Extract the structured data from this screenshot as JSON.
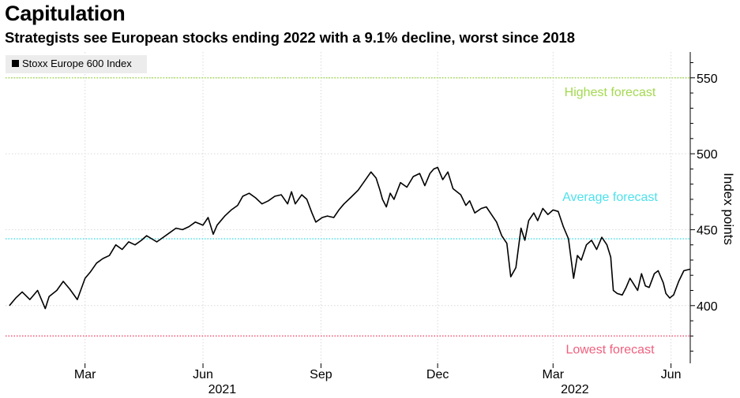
{
  "header": {
    "title": "Capitulation",
    "subtitle": "Strategists see European stocks ending 2022 with a 9.1% decline, worst since 2018"
  },
  "chart_data": {
    "type": "line",
    "title": "Capitulation",
    "subtitle": "Strategists see European stocks ending 2022 with a 9.1% decline, worst since 2018",
    "ylabel": "Index points",
    "ylim": [
      362,
      567
    ],
    "yticks": [
      400,
      450,
      500,
      550
    ],
    "x_range_days": [
      -3,
      531
    ],
    "x_ticks": [
      {
        "label": "Mar",
        "day": 59
      },
      {
        "label": "Jun",
        "day": 151
      },
      {
        "label": "Sep",
        "day": 243
      },
      {
        "label": "Dec",
        "day": 334
      },
      {
        "label": "Mar",
        "day": 424
      },
      {
        "label": "Jun",
        "day": 516
      }
    ],
    "year_labels": [
      {
        "label": "2021",
        "day": 166
      },
      {
        "label": "2022",
        "day": 441
      }
    ],
    "grid": true,
    "legend": [
      {
        "name": "Stoxx Europe 600 Index",
        "color": "#000000"
      }
    ],
    "legend_position": "top-left",
    "reference_lines": [
      {
        "name": "Highest forecast",
        "value": 550,
        "color": "#a3d94f",
        "text_color": "#a3d94f",
        "label_day": 450,
        "label_offset": 550
      },
      {
        "name": "Average forecast",
        "value": 444,
        "color": "#4ee1ec",
        "text_color": "#4ee1ec",
        "label_day": 450,
        "label_offset": 460
      },
      {
        "name": "Lowest forecast",
        "value": 380,
        "color": "#f0607e",
        "text_color": "#f0607e",
        "label_day": 450,
        "label_offset": 368
      }
    ],
    "series": [
      {
        "name": "Stoxx Europe 600 Index",
        "color": "#000000",
        "points": [
          [
            0,
            400
          ],
          [
            5,
            405
          ],
          [
            10,
            409
          ],
          [
            16,
            404
          ],
          [
            22,
            410
          ],
          [
            26,
            402
          ],
          [
            28,
            398
          ],
          [
            31,
            406
          ],
          [
            37,
            410
          ],
          [
            42,
            416
          ],
          [
            47,
            411
          ],
          [
            53,
            404
          ],
          [
            59,
            418
          ],
          [
            63,
            422
          ],
          [
            68,
            428
          ],
          [
            73,
            431
          ],
          [
            78,
            433
          ],
          [
            83,
            440
          ],
          [
            88,
            437
          ],
          [
            93,
            442
          ],
          [
            98,
            440
          ],
          [
            103,
            443
          ],
          [
            107,
            446
          ],
          [
            111,
            444
          ],
          [
            115,
            442
          ],
          [
            120,
            445
          ],
          [
            125,
            448
          ],
          [
            130,
            451
          ],
          [
            135,
            450
          ],
          [
            140,
            452
          ],
          [
            145,
            455
          ],
          [
            151,
            453
          ],
          [
            155,
            458
          ],
          [
            159,
            447
          ],
          [
            162,
            453
          ],
          [
            168,
            459
          ],
          [
            173,
            463
          ],
          [
            178,
            466
          ],
          [
            182,
            472
          ],
          [
            187,
            474
          ],
          [
            192,
            471
          ],
          [
            197,
            467
          ],
          [
            202,
            469
          ],
          [
            207,
            472
          ],
          [
            212,
            473
          ],
          [
            217,
            467
          ],
          [
            220,
            475
          ],
          [
            223,
            467
          ],
          [
            228,
            473
          ],
          [
            232,
            470
          ],
          [
            236,
            461
          ],
          [
            239,
            455
          ],
          [
            244,
            458
          ],
          [
            248,
            459
          ],
          [
            253,
            458
          ],
          [
            257,
            463
          ],
          [
            261,
            467
          ],
          [
            266,
            471
          ],
          [
            272,
            476
          ],
          [
            277,
            482
          ],
          [
            282,
            488
          ],
          [
            286,
            484
          ],
          [
            289,
            476
          ],
          [
            291,
            470
          ],
          [
            294,
            465
          ],
          [
            297,
            474
          ],
          [
            300,
            470
          ],
          [
            305,
            481
          ],
          [
            310,
            478
          ],
          [
            315,
            485
          ],
          [
            320,
            487
          ],
          [
            324,
            479
          ],
          [
            328,
            487
          ],
          [
            331,
            490
          ],
          [
            334,
            491
          ],
          [
            338,
            483
          ],
          [
            342,
            488
          ],
          [
            346,
            477
          ],
          [
            352,
            473
          ],
          [
            356,
            466
          ],
          [
            359,
            469
          ],
          [
            363,
            461
          ],
          [
            368,
            464
          ],
          [
            372,
            465
          ],
          [
            376,
            460
          ],
          [
            380,
            455
          ],
          [
            384,
            446
          ],
          [
            388,
            441
          ],
          [
            391,
            419
          ],
          [
            395,
            425
          ],
          [
            399,
            451
          ],
          [
            402,
            443
          ],
          [
            405,
            456
          ],
          [
            409,
            461
          ],
          [
            412,
            456
          ],
          [
            416,
            464
          ],
          [
            420,
            460
          ],
          [
            424,
            463
          ],
          [
            428,
            462
          ],
          [
            432,
            452
          ],
          [
            436,
            444
          ],
          [
            440,
            418
          ],
          [
            443,
            433
          ],
          [
            446,
            430
          ],
          [
            450,
            440
          ],
          [
            454,
            443
          ],
          [
            458,
            437
          ],
          [
            462,
            445
          ],
          [
            466,
            440
          ],
          [
            469,
            432
          ],
          [
            471,
            410
          ],
          [
            474,
            408
          ],
          [
            478,
            407
          ],
          [
            481,
            412
          ],
          [
            484,
            418
          ],
          [
            487,
            414
          ],
          [
            490,
            410
          ],
          [
            493,
            421
          ],
          [
            496,
            413
          ],
          [
            499,
            412
          ],
          [
            503,
            421
          ],
          [
            506,
            423
          ],
          [
            510,
            415
          ],
          [
            512,
            408
          ],
          [
            515,
            405
          ],
          [
            518,
            407
          ],
          [
            522,
            416
          ],
          [
            526,
            423
          ],
          [
            531,
            424
          ]
        ]
      }
    ]
  }
}
